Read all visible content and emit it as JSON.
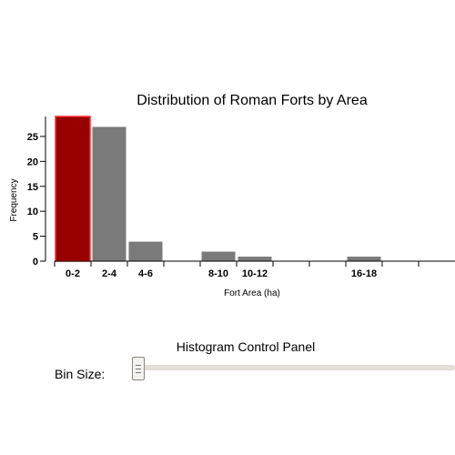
{
  "chart_data": {
    "type": "bar",
    "title": "Distribution of Roman Forts by Area",
    "xlabel": "Fort Area (ha)",
    "ylabel": "Frequency",
    "ylim": [
      0,
      29
    ],
    "yticks": [
      0,
      5,
      10,
      15,
      20,
      25
    ],
    "bins": [
      {
        "label": "0-2",
        "value": 29,
        "highlight": true
      },
      {
        "label": "2-4",
        "value": 27
      },
      {
        "label": "4-6",
        "value": 4
      },
      {
        "label": "",
        "value": 0
      },
      {
        "label": "8-10",
        "value": 2
      },
      {
        "label": "10-12",
        "value": 1
      },
      {
        "label": "",
        "value": 0
      },
      {
        "label": "",
        "value": 0
      },
      {
        "label": "16-18",
        "value": 1
      },
      {
        "label": "",
        "value": 0
      },
      {
        "label": "",
        "value": 0
      }
    ],
    "colors": {
      "bar": "#7a7a7a",
      "highlight": "#990000",
      "highlight_stroke": "#ff2a2a"
    }
  },
  "control_panel": {
    "title": "Histogram Control Panel",
    "bin_size_label": "Bin Size:",
    "bin_size_position": 0.0
  }
}
